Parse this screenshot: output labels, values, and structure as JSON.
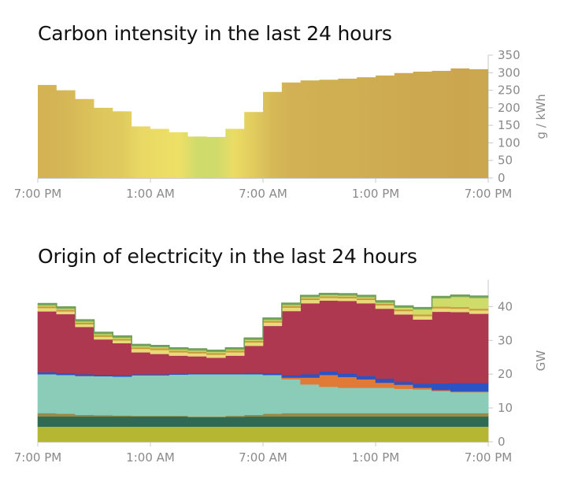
{
  "chart_data": [
    {
      "type": "area",
      "title": "Carbon intensity in the last 24 hours",
      "xlabel": "",
      "ylabel": "g / kWh",
      "x_ticks": [
        "7:00 PM",
        "1:00 AM",
        "7:00 AM",
        "1:00 PM",
        "7:00 PM"
      ],
      "y_ticks": [
        0,
        50,
        100,
        150,
        200,
        250,
        300,
        350
      ],
      "ylim": [
        0,
        350
      ],
      "hours": 24,
      "values": [
        265,
        250,
        225,
        200,
        190,
        147,
        140,
        130,
        118,
        117,
        140,
        188,
        245,
        272,
        278,
        280,
        283,
        287,
        292,
        299,
        303,
        305,
        312,
        310
      ],
      "color_low": "#f2e86a",
      "color_mid": "#cfdb6b",
      "color_high": "#cba64f"
    },
    {
      "type": "area",
      "stacked": true,
      "title": "Origin of electricity in the last 24 hours",
      "xlabel": "",
      "ylabel": "GW",
      "x_ticks": [
        "7:00 PM",
        "1:00 AM",
        "7:00 AM",
        "1:00 PM",
        "7:00 PM"
      ],
      "y_ticks": [
        0,
        10,
        20,
        30,
        40
      ],
      "ylim": [
        0,
        48
      ],
      "hours": 24,
      "series": [
        {
          "color": "#b5b732",
          "values": [
            4.5,
            4.5,
            4.5,
            4.5,
            4.5,
            4.5,
            4.5,
            4.5,
            4.5,
            4.5,
            4.5,
            4.5,
            4.5,
            4.5,
            4.5,
            4.5,
            4.5,
            4.5,
            4.5,
            4.5,
            4.5,
            4.5,
            4.5,
            4.5
          ]
        },
        {
          "color": "#2f6a55",
          "values": [
            3,
            3,
            3,
            3,
            3,
            3,
            3,
            3,
            2.8,
            2.8,
            2.9,
            3,
            3,
            3,
            3,
            3,
            3,
            3,
            3,
            3,
            3,
            3,
            3,
            3
          ]
        },
        {
          "color": "#9b8a45",
          "values": [
            1,
            0.8,
            0.5,
            0.4,
            0.3,
            0.2,
            0.2,
            0.2,
            0.2,
            0.2,
            0.3,
            0.5,
            0.8,
            1,
            1,
            1,
            1,
            1,
            1,
            1,
            1,
            1,
            1,
            1
          ]
        },
        {
          "color": "#8bccb8",
          "values": [
            11.5,
            11.5,
            11.5,
            11.5,
            11.5,
            12,
            12,
            12.2,
            12.5,
            12.5,
            12.3,
            12,
            11.5,
            10,
            8.5,
            7.8,
            7.5,
            7.5,
            7.5,
            7.2,
            7,
            6.5,
            6.2,
            6.2
          ]
        },
        {
          "color": "#e07a36",
          "values": [
            0,
            0,
            0,
            0,
            0,
            0,
            0,
            0,
            0,
            0,
            0,
            0,
            0,
            0.5,
            2,
            3.5,
            3.2,
            2.5,
            1.5,
            1.2,
            0.5,
            0.3,
            0.2,
            0.2
          ]
        },
        {
          "color": "#2c53c4",
          "values": [
            0.6,
            0.5,
            0.5,
            0.4,
            0.4,
            0.3,
            0.3,
            0.3,
            0.3,
            0.3,
            0.3,
            0.4,
            0.5,
            0.7,
            1,
            1,
            1,
            1,
            1.2,
            0.8,
            1.2,
            2,
            2.5,
            2.5
          ]
        },
        {
          "color": "#ad384f",
          "values": [
            18,
            17.5,
            14,
            10.5,
            9.5,
            6.5,
            6,
            5.3,
            5,
            4.6,
            5.2,
            8,
            14,
            19,
            21,
            21,
            21.5,
            21.5,
            20.7,
            20,
            19,
            21.2,
            21,
            20.5
          ]
        },
        {
          "color": "#e8d97a",
          "values": [
            1,
            0.8,
            0.8,
            0.8,
            0.8,
            1,
            1.2,
            1,
            0.9,
            0.9,
            1,
            1,
            1,
            1,
            1,
            0.8,
            0.8,
            1,
            1,
            1,
            1,
            1,
            1,
            1
          ]
        },
        {
          "color": "#c79c3c",
          "values": [
            0.5,
            0.5,
            0.5,
            0.5,
            0.5,
            0.5,
            0.5,
            0.5,
            0.5,
            0.5,
            0.5,
            0.5,
            0.5,
            0.5,
            0.5,
            0.5,
            0.5,
            0.5,
            0.5,
            0.5,
            0.5,
            0.5,
            0.5,
            0.5
          ]
        },
        {
          "color": "#cfdc6a",
          "values": [
            0.3,
            0.3,
            0.3,
            0.3,
            0.3,
            0.3,
            0.3,
            0.3,
            0.3,
            0.3,
            0.3,
            0.3,
            0.3,
            0.3,
            0.3,
            0.3,
            0.3,
            0.3,
            0.3,
            0.5,
            1.5,
            2.5,
            3,
            3.2
          ]
        },
        {
          "color": "#77a85e",
          "values": [
            0.5,
            0.5,
            0.5,
            0.5,
            0.5,
            0.5,
            0.5,
            0.5,
            0.5,
            0.5,
            0.5,
            0.5,
            0.5,
            0.5,
            0.5,
            0.5,
            0.5,
            0.5,
            0.5,
            0.5,
            0.5,
            0.5,
            0.5,
            0.5
          ]
        }
      ]
    }
  ]
}
